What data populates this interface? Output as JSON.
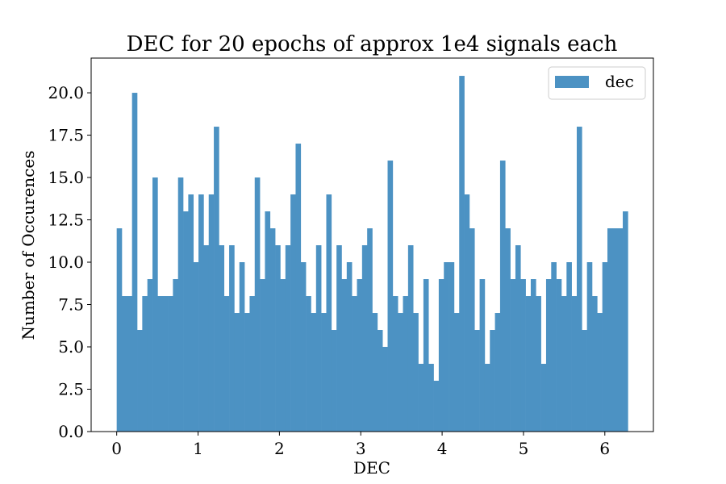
{
  "chart_data": {
    "type": "bar",
    "subtype": "histogram",
    "title": "DEC for 20 epochs of approx 1e4 signals each",
    "xlabel": "DEC",
    "ylabel": "Number of Occurences",
    "xlim": [
      -0.314,
      6.597
    ],
    "ylim": [
      0,
      22.05
    ],
    "bin_start": 0,
    "bin_end": 6.2832,
    "x_ticks": [
      0,
      1,
      2,
      3,
      4,
      5,
      6
    ],
    "x_tick_labels": [
      "0",
      "1",
      "2",
      "3",
      "4",
      "5",
      "6"
    ],
    "y_ticks": [
      0,
      2.5,
      5,
      7.5,
      10,
      12.5,
      15,
      17.5,
      20
    ],
    "y_tick_labels": [
      "0.0",
      "2.5",
      "5.0",
      "7.5",
      "10.0",
      "12.5",
      "15.0",
      "17.5",
      "20.0"
    ],
    "legend_position": "top-right",
    "grid": false,
    "series": [
      {
        "name": "dec",
        "color": "#4c92c3",
        "values": [
          12,
          8,
          8,
          20,
          6,
          8,
          9,
          15,
          8,
          8,
          8,
          9,
          15,
          13,
          14,
          10,
          14,
          11,
          14,
          18,
          11,
          8,
          11,
          7,
          10,
          7,
          8,
          15,
          9,
          13,
          12,
          11,
          9,
          11,
          14,
          17,
          10,
          8,
          7,
          11,
          7,
          14,
          6,
          11,
          9,
          10,
          8,
          9,
          11,
          12,
          7,
          6,
          5,
          16,
          8,
          7,
          8,
          11,
          7,
          4,
          9,
          4,
          3,
          9,
          10,
          10,
          7,
          21,
          14,
          12,
          6,
          9,
          4,
          6,
          7,
          16,
          12,
          9,
          11,
          9,
          8,
          9,
          8,
          4,
          9,
          10,
          9,
          8,
          10,
          8,
          18,
          6,
          10,
          8,
          7,
          10,
          12,
          12,
          12,
          13
        ]
      }
    ]
  }
}
